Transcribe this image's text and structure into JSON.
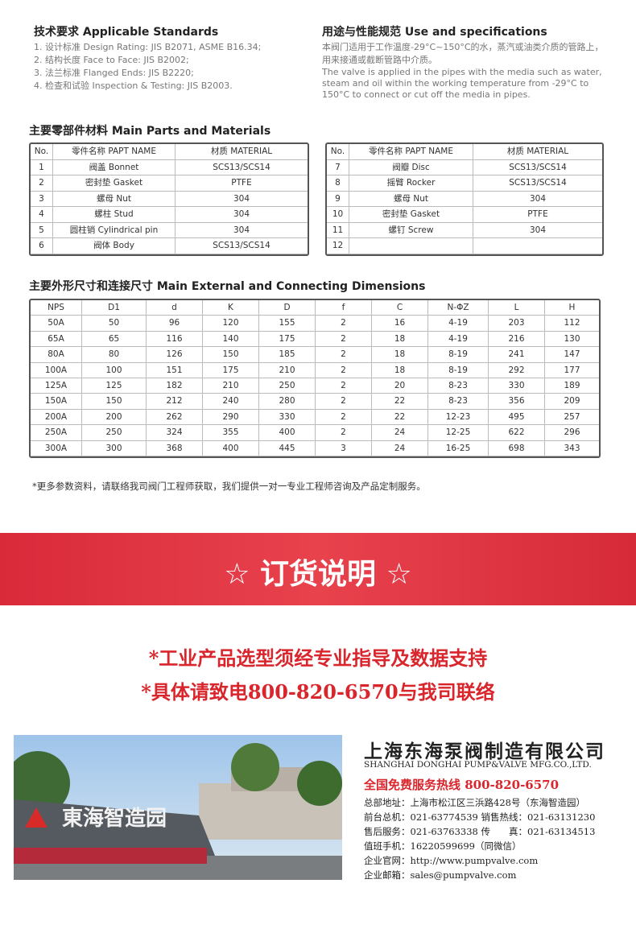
{
  "standards": {
    "title": "技术要求 Applicable Standards",
    "items": [
      "1. 设计标准 Design Rating: JIS B2071, ASME B16.34;",
      "2. 结构长度 Face to Face: JIS B2002;",
      "3. 法兰标准 Flanged Ends: JIS B2220;",
      "4. 检查和试验 Inspection & Testing: JIS B2003."
    ]
  },
  "specs": {
    "title": "用途与性能规范 Use and specifications",
    "zh": "本阀门适用于工作温度-29°C~150°C的水，蒸汽或油类介质的管路上，用来接通或截断管路中介质。",
    "en": "The valve is applied in the pipes with the media such as water, steam and oil within the working temperature from -29°C to 150°C to connect or cut off the media in pipes."
  },
  "parts": {
    "title": "主要零部件材料 Main Parts and Materials",
    "headers": [
      "No.",
      "零件名称 PAPT NAME",
      "材质 MATERIAL"
    ],
    "left": [
      [
        "1",
        "阀盖 Bonnet",
        "SCS13/SCS14"
      ],
      [
        "2",
        "密封垫 Gasket",
        "PTFE"
      ],
      [
        "3",
        "螺母 Nut",
        "304"
      ],
      [
        "4",
        "螺柱 Stud",
        "304"
      ],
      [
        "5",
        "圆柱销 Cylindrical pin",
        "304"
      ],
      [
        "6",
        "阀体 Body",
        "SCS13/SCS14"
      ]
    ],
    "right": [
      [
        "7",
        "阀瓣 Disc",
        "SCS13/SCS14"
      ],
      [
        "8",
        "摇臂 Rocker",
        "SCS13/SCS14"
      ],
      [
        "9",
        "螺母 Nut",
        "304"
      ],
      [
        "10",
        "密封垫 Gasket",
        "PTFE"
      ],
      [
        "11",
        "螺钉 Screw",
        "304"
      ],
      [
        "12"
      ]
    ]
  },
  "dims": {
    "title": "主要外形尺寸和连接尺寸 Main External and Connecting Dimensions",
    "headers": [
      "NPS",
      "D1",
      "d",
      "K",
      "D",
      "f",
      "C",
      "N-ΦZ",
      "L",
      "H"
    ],
    "rows": [
      [
        "50A",
        "50",
        "96",
        "120",
        "155",
        "2",
        "16",
        "4-19",
        "203",
        "112"
      ],
      [
        "65A",
        "65",
        "116",
        "140",
        "175",
        "2",
        "18",
        "4-19",
        "216",
        "130"
      ],
      [
        "80A",
        "80",
        "126",
        "150",
        "185",
        "2",
        "18",
        "8-19",
        "241",
        "147"
      ],
      [
        "100A",
        "100",
        "151",
        "175",
        "210",
        "2",
        "18",
        "8-19",
        "292",
        "177"
      ],
      [
        "125A",
        "125",
        "182",
        "210",
        "250",
        "2",
        "20",
        "8-23",
        "330",
        "189"
      ],
      [
        "150A",
        "150",
        "212",
        "240",
        "280",
        "2",
        "22",
        "8-23",
        "356",
        "209"
      ],
      [
        "200A",
        "200",
        "262",
        "290",
        "330",
        "2",
        "22",
        "12-23",
        "495",
        "257"
      ],
      [
        "250A",
        "250",
        "324",
        "355",
        "400",
        "2",
        "24",
        "12-25",
        "622",
        "296"
      ],
      [
        "300A",
        "300",
        "368",
        "400",
        "445",
        "3",
        "24",
        "16-25",
        "698",
        "343"
      ]
    ]
  },
  "note": "*更多参数资料，请联络我司阀门工程师获取，我们提供一对一专业工程师咨询及产品定制服务。",
  "order": {
    "title": "☆ 订货说明 ☆",
    "notices": [
      "*工业产品选型须经专业指导及数据支持",
      "*具体请致电800-820-6570与我司联络"
    ]
  },
  "photo": {
    "sign": "東海智造园"
  },
  "company": {
    "name_zh": "上海东海泵阀制造有限公司",
    "name_en": "SHANGHAI DONGHAI PUMP&VALVE MFG.CO.,LTD.",
    "hotline": "全国免费服务热线  800-820-6570",
    "lines": [
      "总部地址：上海市松江区三浜路428号（东海智造园）",
      "前台总机：021-63774539   销售热线：021-63131230",
      "售后服务：021-63763338   传　　真：021-63134513",
      "值班手机：16220599699（同微信）",
      "企业官网：http://www.pumpvalve.com",
      "企业邮箱：sales@pumpvalve.com"
    ]
  }
}
